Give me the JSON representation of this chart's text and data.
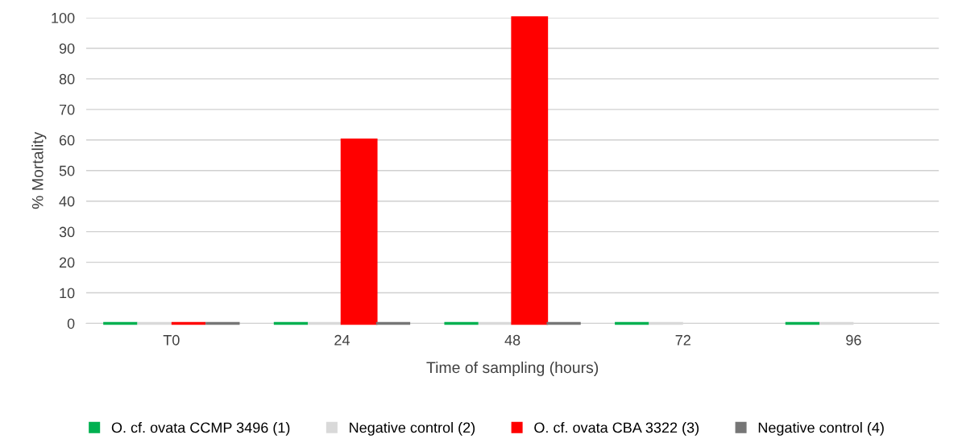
{
  "chart_data": {
    "type": "bar",
    "xlabel": "Time of sampling (hours)",
    "ylabel": "% Mortality",
    "categories": [
      "T0",
      "24",
      "48",
      "72",
      "96"
    ],
    "series": [
      {
        "name": "O. cf. ovata CCMP 3496 (1)",
        "color": "#00b050",
        "values": [
          0,
          0,
          0,
          0,
          0
        ]
      },
      {
        "name": "Negative control (2)",
        "color": "#d9d9d9",
        "values": [
          0,
          0,
          0,
          0,
          0
        ]
      },
      {
        "name": "O. cf. ovata CBA 3322 (3)",
        "color": "#ff0000",
        "values": [
          0,
          60,
          100,
          null,
          null
        ]
      },
      {
        "name": "Negative control (4)",
        "color": "#767676",
        "values": [
          0,
          0,
          0,
          null,
          null
        ]
      }
    ],
    "ylim": [
      0,
      100
    ],
    "yticks": [
      0,
      10,
      20,
      30,
      40,
      50,
      60,
      70,
      80,
      90,
      100
    ],
    "grid": "y",
    "legend": "bottom"
  }
}
